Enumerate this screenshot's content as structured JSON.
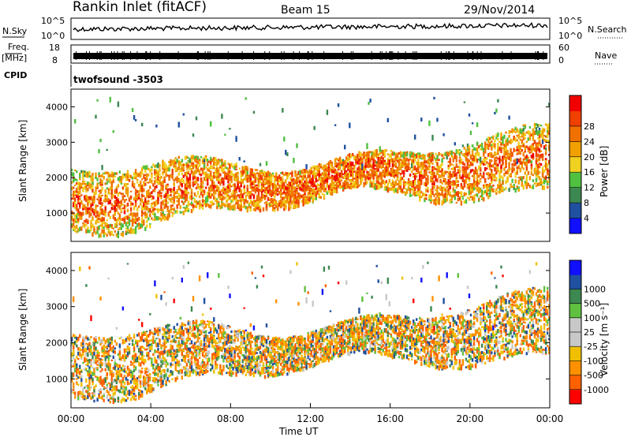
{
  "header": {
    "title": "Rankin Inlet (fitACF)",
    "beam": "Beam 15",
    "date": "29/Nov/2014"
  },
  "nsky": {
    "label": "N.Sky",
    "right_label": "N.Search",
    "tick_top": "10^5",
    "tick_bottom": "10^0",
    "tick_top_right": "10^5",
    "tick_bottom_right": "10^0"
  },
  "freq": {
    "label_line1": "Freq.",
    "label_line2": "[MHz]",
    "tick_top": "18",
    "tick_bottom": "8",
    "right_label": "Nave",
    "right_tick_top": "60",
    "right_tick_bottom": "0"
  },
  "cpid": {
    "label": "CPID",
    "value": "twofsound -3503"
  },
  "colors": {
    "power_scale": [
      "#1010ff",
      "#2050a0",
      "#3c8850",
      "#50c040",
      "#f0d020",
      "#f0a000",
      "#f07000",
      "#f04000",
      "#f00000"
    ],
    "velocity_scale": [
      "#ff0000",
      "#ff6000",
      "#ff9000",
      "#f0c000",
      "#c8c8c8",
      "#c8c8c8",
      "#60c040",
      "#3c8850",
      "#2050a0",
      "#1010ff"
    ]
  },
  "chart_data": [
    {
      "type": "heatmap",
      "name": "power",
      "ylabel": "Slant Range [km]",
      "ylim": [
        200,
        4500
      ],
      "yticks": [
        "1000",
        "2000",
        "3000",
        "4000"
      ],
      "colorbar_label": "Power [dB]",
      "colorbar_ticks": [
        "4",
        "8",
        "12",
        "16",
        "20",
        "24",
        "28"
      ]
    },
    {
      "type": "heatmap",
      "name": "velocity",
      "ylabel": "Slant Range [km]",
      "ylim": [
        200,
        4500
      ],
      "yticks": [
        "1000",
        "2000",
        "3000",
        "4000"
      ],
      "colorbar_label": "Velocity [m s⁻¹]",
      "colorbar_ticks": [
        "-1000",
        "-500",
        "-100",
        "-25",
        "25",
        "100",
        "500",
        "1000"
      ],
      "xlabel": "Time UT",
      "xticks": [
        "00:00",
        "04:00",
        "08:00",
        "12:00",
        "16:00",
        "20:00",
        "00:00"
      ]
    }
  ]
}
